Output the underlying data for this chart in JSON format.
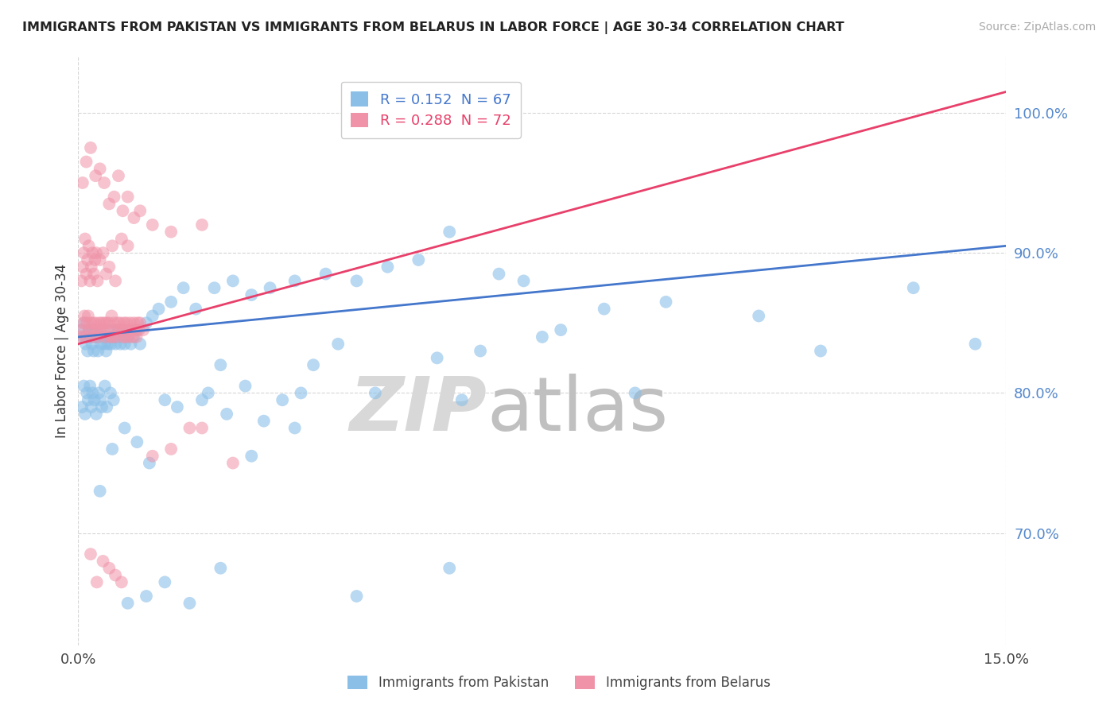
{
  "title": "IMMIGRANTS FROM PAKISTAN VS IMMIGRANTS FROM BELARUS IN LABOR FORCE | AGE 30-34 CORRELATION CHART",
  "source": "Source: ZipAtlas.com",
  "ylabel": "In Labor Force | Age 30-34",
  "xlim": [
    0.0,
    15.0
  ],
  "ylim": [
    62.0,
    104.0
  ],
  "x_tick_labels": [
    "0.0%",
    "15.0%"
  ],
  "y_ticks": [
    70.0,
    80.0,
    90.0,
    100.0
  ],
  "y_tick_labels": [
    "70.0%",
    "80.0%",
    "90.0%",
    "100.0%"
  ],
  "pakistan_color": "#8bbfe8",
  "belarus_color": "#f093a8",
  "pakistan_line_color": "#4477cc",
  "belarus_line_color": "#e8406a",
  "pakistan_R": 0.152,
  "pakistan_N": 67,
  "belarus_R": 0.288,
  "belarus_N": 72,
  "pak_line_y0": 84.0,
  "pak_line_y1": 90.5,
  "bel_line_y0": 83.5,
  "bel_line_y1": 101.5,
  "pakistan_x": [
    0.05,
    0.08,
    0.1,
    0.12,
    0.13,
    0.15,
    0.17,
    0.18,
    0.2,
    0.22,
    0.24,
    0.25,
    0.27,
    0.28,
    0.3,
    0.32,
    0.35,
    0.37,
    0.4,
    0.42,
    0.45,
    0.48,
    0.5,
    0.53,
    0.55,
    0.58,
    0.6,
    0.62,
    0.65,
    0.68,
    0.7,
    0.73,
    0.75,
    0.8,
    0.85,
    0.9,
    0.95,
    1.0,
    1.1,
    1.2,
    1.3,
    1.5,
    1.7,
    1.9,
    2.2,
    2.5,
    2.8,
    3.1,
    3.5,
    4.0,
    4.5,
    5.0,
    5.5,
    6.0,
    6.8,
    7.2,
    8.5,
    9.5,
    11.0,
    13.5,
    2.0,
    2.3,
    3.8,
    4.2,
    5.8,
    6.5,
    7.8
  ],
  "pakistan_y": [
    84.5,
    84.0,
    85.0,
    83.5,
    84.0,
    83.0,
    84.5,
    84.5,
    84.0,
    83.5,
    84.5,
    83.0,
    84.0,
    84.5,
    84.0,
    83.0,
    84.5,
    83.5,
    84.0,
    83.5,
    83.0,
    83.5,
    84.0,
    83.5,
    84.5,
    84.0,
    83.5,
    84.0,
    84.5,
    83.5,
    84.0,
    84.5,
    83.5,
    84.0,
    83.5,
    84.0,
    84.5,
    83.5,
    85.0,
    85.5,
    86.0,
    86.5,
    87.5,
    86.0,
    87.5,
    88.0,
    87.0,
    87.5,
    88.0,
    88.5,
    88.0,
    89.0,
    89.5,
    91.5,
    88.5,
    88.0,
    86.0,
    86.5,
    85.5,
    87.5,
    79.5,
    82.0,
    82.0,
    83.5,
    82.5,
    83.0,
    84.5
  ],
  "pakistan_x2": [
    0.06,
    0.09,
    0.11,
    0.14,
    0.16,
    0.19,
    0.21,
    0.23,
    0.26,
    0.29,
    0.33,
    0.36,
    0.38,
    0.43,
    0.46,
    0.52,
    0.57,
    1.6,
    2.1,
    2.7,
    3.3,
    4.8,
    6.2,
    7.5,
    9.0,
    12.0,
    14.5,
    0.35,
    0.55,
    0.75,
    0.95,
    1.15,
    1.4,
    2.4,
    3.0,
    3.6
  ],
  "pakistan_y2": [
    79.0,
    80.5,
    78.5,
    80.0,
    79.5,
    80.5,
    79.0,
    80.0,
    79.5,
    78.5,
    80.0,
    79.5,
    79.0,
    80.5,
    79.0,
    80.0,
    79.5,
    79.0,
    80.0,
    80.5,
    79.5,
    80.0,
    79.5,
    84.0,
    80.0,
    83.0,
    83.5,
    73.0,
    76.0,
    77.5,
    76.5,
    75.0,
    79.5,
    78.5,
    78.0,
    80.0
  ],
  "pakistan_x3": [
    0.8,
    1.1,
    1.4,
    1.8,
    2.3,
    2.8,
    3.5,
    4.5,
    6.0
  ],
  "pakistan_y3": [
    65.0,
    65.5,
    66.5,
    65.0,
    67.5,
    75.5,
    77.5,
    65.5,
    67.5
  ],
  "belarus_x": [
    0.04,
    0.06,
    0.08,
    0.1,
    0.12,
    0.14,
    0.16,
    0.18,
    0.2,
    0.22,
    0.24,
    0.26,
    0.28,
    0.3,
    0.32,
    0.34,
    0.36,
    0.38,
    0.4,
    0.42,
    0.44,
    0.46,
    0.48,
    0.5,
    0.52,
    0.54,
    0.56,
    0.58,
    0.6,
    0.62,
    0.64,
    0.66,
    0.68,
    0.7,
    0.72,
    0.74,
    0.76,
    0.78,
    0.8,
    0.82,
    0.84,
    0.86,
    0.88,
    0.9,
    0.92,
    0.94,
    0.96,
    0.98,
    1.0,
    1.05
  ],
  "belarus_y": [
    84.0,
    84.5,
    85.0,
    85.5,
    84.0,
    85.0,
    85.5,
    84.5,
    85.0,
    84.0,
    85.0,
    84.5,
    85.0,
    84.5,
    84.0,
    85.0,
    84.5,
    85.0,
    84.5,
    85.0,
    84.0,
    85.0,
    84.5,
    85.0,
    84.0,
    85.5,
    84.0,
    85.0,
    84.5,
    84.0,
    85.0,
    84.5,
    85.0,
    84.5,
    84.0,
    85.0,
    84.0,
    85.0,
    84.5,
    84.0,
    85.0,
    84.5,
    84.0,
    85.0,
    84.5,
    84.0,
    85.0,
    84.5,
    85.0,
    84.5
  ],
  "belarus_x2": [
    0.05,
    0.07,
    0.09,
    0.11,
    0.13,
    0.15,
    0.17,
    0.19,
    0.21,
    0.23,
    0.25,
    0.27,
    0.29,
    0.31,
    0.35,
    0.4,
    0.45,
    0.5,
    0.55,
    0.6,
    0.7,
    0.8
  ],
  "belarus_y2": [
    88.0,
    89.0,
    90.0,
    91.0,
    88.5,
    89.5,
    90.5,
    88.0,
    89.0,
    90.0,
    88.5,
    89.5,
    90.0,
    88.0,
    89.5,
    90.0,
    88.5,
    89.0,
    90.5,
    88.0,
    91.0,
    90.5
  ],
  "belarus_x3": [
    0.07,
    0.13,
    0.2,
    0.28,
    0.35,
    0.42,
    0.5,
    0.58,
    0.65,
    0.72,
    0.8,
    0.9,
    1.0,
    1.2,
    1.5,
    2.0
  ],
  "belarus_y3": [
    95.0,
    96.5,
    97.5,
    95.5,
    96.0,
    95.0,
    93.5,
    94.0,
    95.5,
    93.0,
    94.0,
    92.5,
    93.0,
    92.0,
    91.5,
    92.0
  ],
  "belarus_x4": [
    0.3,
    0.6,
    0.4,
    0.5,
    0.7,
    0.2,
    1.2,
    1.8,
    2.5,
    1.5,
    2.0
  ],
  "belarus_y4": [
    66.5,
    67.0,
    68.0,
    67.5,
    66.5,
    68.5,
    75.5,
    77.5,
    75.0,
    76.0,
    77.5
  ],
  "watermark_zip": "ZIP",
  "watermark_atlas": "atlas"
}
